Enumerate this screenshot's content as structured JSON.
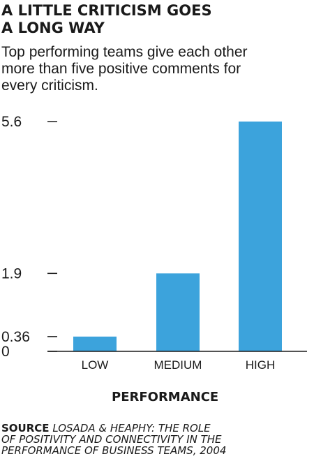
{
  "title_lines": [
    "A LITTLE CRITICISM GOES",
    "A LONG WAY"
  ],
  "subtitle_lines": [
    "Top performing teams give each other",
    "more than five positive comments for",
    "every criticism."
  ],
  "source": {
    "label": "SOURCE",
    "text_lines": [
      "LOSADA & HEAPHY: THE ROLE",
      "OF POSITIVITY AND CONNECTIVITY IN THE",
      "PERFORMANCE OF BUSINESS TEAMS, 2004"
    ],
    "text_line1": "LOSADA & HEAPHY: THE ROLE",
    "text_line2": "OF POSITIVITY AND CONNECTIVITY IN THE",
    "text_line3": "PERFORMANCE OF BUSINESS TEAMS, 2004"
  },
  "colors": {
    "bar": "#3ca3dc",
    "text": "#1a1a1a"
  },
  "chart_data": {
    "type": "bar",
    "title": "A LITTLE CRITICISM GOES A LONG WAY",
    "xlabel": "PERFORMANCE",
    "ylabel": "",
    "categories": [
      "LOW",
      "MEDIUM",
      "HIGH"
    ],
    "values": [
      0.36,
      1.9,
      5.6
    ],
    "yticks": [
      "5.6",
      "1.9",
      "0.36",
      "0"
    ],
    "ytick_values": [
      5.6,
      1.9,
      0.36,
      0
    ],
    "ylim": [
      0,
      5.6
    ],
    "grid": false,
    "legend": "none"
  }
}
